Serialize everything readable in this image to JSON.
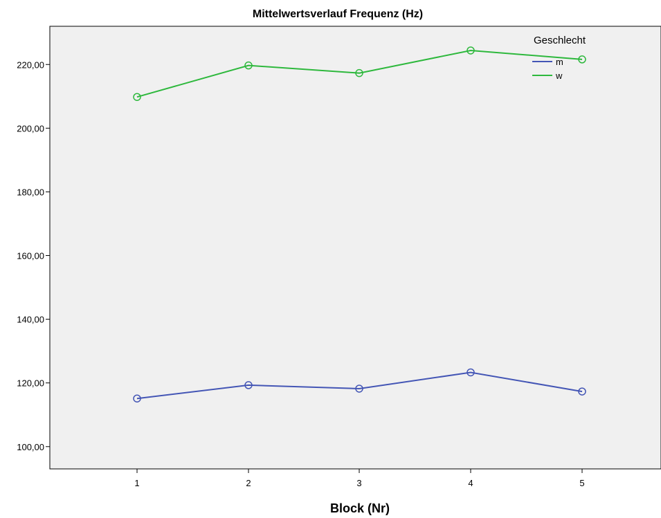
{
  "chart_data": {
    "type": "line",
    "title": "Mittelwertsverlauf Frequenz (Hz)",
    "xlabel": "Block (Nr)",
    "ylabel": "",
    "categories": [
      "1",
      "2",
      "3",
      "4",
      "5"
    ],
    "yticks": [
      "100,00",
      "120,00",
      "140,00",
      "160,00",
      "180,00",
      "200,00",
      "220,00"
    ],
    "ylim": [
      93,
      232
    ],
    "legend": {
      "title": "Geschlecht",
      "position": "top-right"
    },
    "series": [
      {
        "name": "m",
        "color": "#4355b5",
        "values": [
          115.1,
          119.3,
          118.2,
          123.3,
          117.3
        ]
      },
      {
        "name": "w",
        "color": "#2db83c",
        "values": [
          209.8,
          219.7,
          217.3,
          224.4,
          221.6
        ]
      }
    ],
    "plot_background": "#f0f0f0",
    "grid": false
  }
}
